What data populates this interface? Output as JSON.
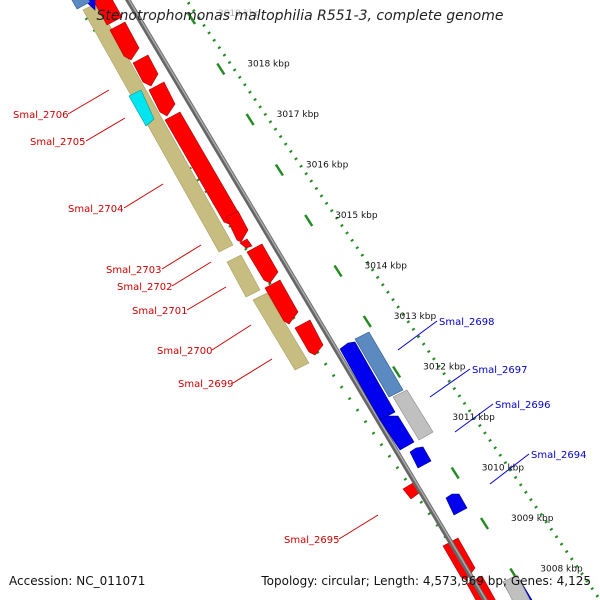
{
  "title": "Stenotrophomonas maltophilia R551-3, complete genome",
  "footer": {
    "accession": "Accession: NC_011071",
    "summary": "Topology: circular; Length: 4,573,969 bp; Genes: 4,125"
  },
  "colors": {
    "forward_cds": "#ff0000",
    "reverse_cds": "#0000ee",
    "forward_gene": "#c8bd80",
    "reverse_gene": "#5a8ac0",
    "rna": "#00e5ee",
    "pseudo_or_other": "#c0c0c0",
    "backbone": "#808080",
    "tick": "#228b22",
    "forward_label": "#cc0000",
    "reverse_label": "#0000cc"
  },
  "scale_ticks": [
    {
      "label": "3019 kbp"
    },
    {
      "label": "3018 kbp"
    },
    {
      "label": "3017 kbp"
    },
    {
      "label": "3016 kbp"
    },
    {
      "label": "3015 kbp"
    },
    {
      "label": "3014 kbp"
    },
    {
      "label": "3013 kbp"
    },
    {
      "label": "3012 kbp"
    },
    {
      "label": "3011 kbp"
    },
    {
      "label": "3010 kbp"
    },
    {
      "label": "3009 kbp"
    },
    {
      "label": "3008 kbp"
    }
  ],
  "forward_labels": [
    {
      "text": "Smal_2706"
    },
    {
      "text": "Smal_2705"
    },
    {
      "text": "Smal_2704"
    },
    {
      "text": "Smal_2703"
    },
    {
      "text": "Smal_2702"
    },
    {
      "text": "Smal_2701"
    },
    {
      "text": "Smal_2700"
    },
    {
      "text": "Smal_2699"
    },
    {
      "text": "Smal_2695"
    }
  ],
  "reverse_labels": [
    {
      "text": "Smal_2698"
    },
    {
      "text": "Smal_2697"
    },
    {
      "text": "Smal_2696"
    },
    {
      "text": "Smal_2694"
    }
  ]
}
